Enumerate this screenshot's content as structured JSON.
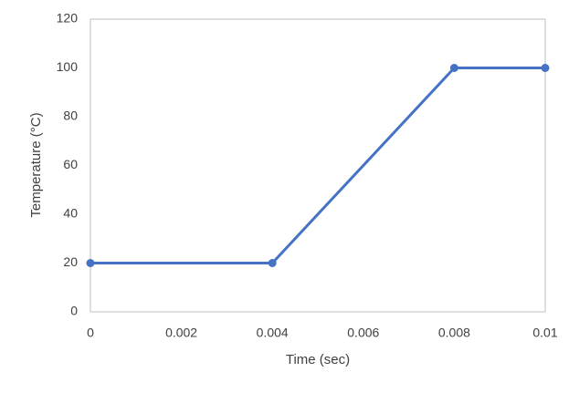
{
  "chart_data": {
    "type": "line",
    "x_label": "Time (sec)",
    "y_label": "Temperature (°C)",
    "x": [
      0,
      0.004,
      0.008,
      0.01
    ],
    "series": [
      {
        "name": "Temperature",
        "color": "#4472c4",
        "values": [
          20,
          20,
          100,
          100
        ]
      }
    ],
    "xlim": [
      0,
      0.01
    ],
    "xticks": [
      0,
      0.002,
      0.004,
      0.006,
      0.008,
      0.01
    ],
    "ylim": [
      0,
      120
    ],
    "yticks": [
      0,
      20,
      40,
      60,
      80,
      100,
      120
    ],
    "grid": false,
    "markers": true
  }
}
